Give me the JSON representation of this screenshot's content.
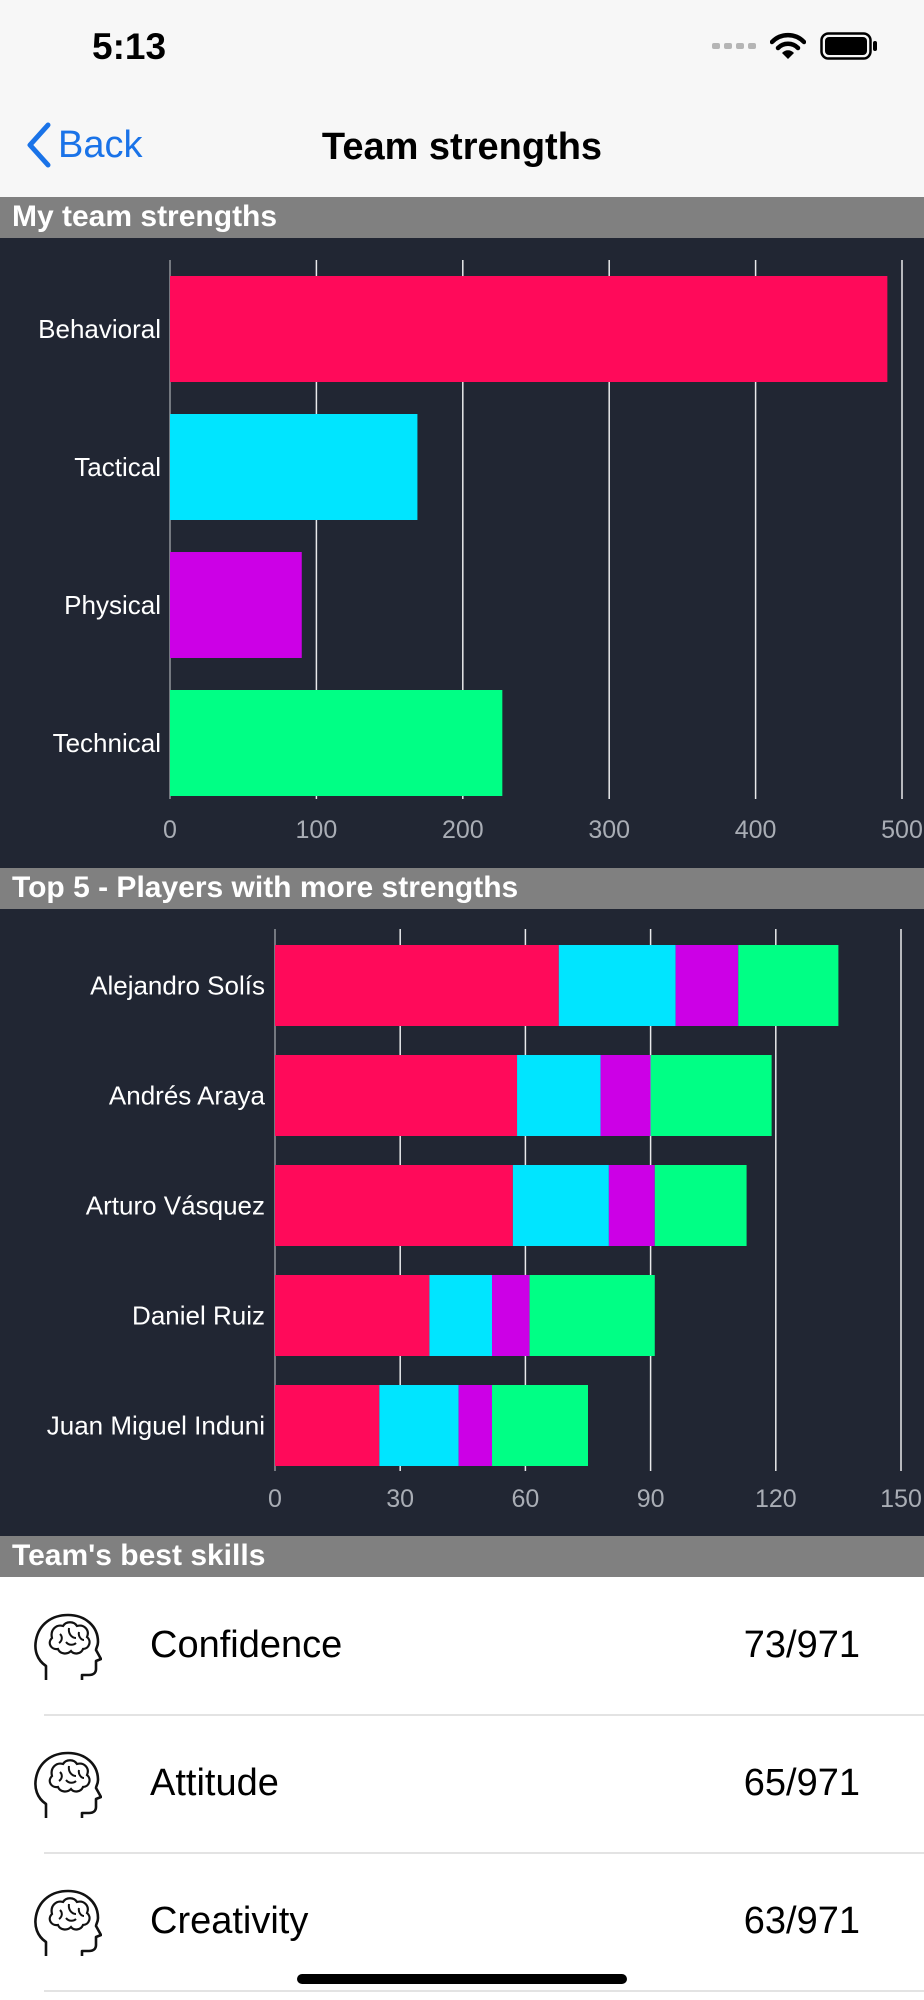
{
  "status_bar": {
    "time": "5:13"
  },
  "nav": {
    "back_label": "Back",
    "title": "Team strengths"
  },
  "sections": {
    "team_strengths": "My team strengths",
    "top_players": "Top 5 - Players with more strengths",
    "best_skills": "Team's best skills"
  },
  "colors": {
    "behavioral": "#ff0a5a",
    "tactical": "#00e5ff",
    "physical": "#cc00e6",
    "technical": "#00ff85",
    "panel_bg": "#212633",
    "header_bg": "#808080",
    "link": "#1a73e8"
  },
  "chart_data": [
    {
      "type": "bar",
      "orientation": "horizontal",
      "categories": [
        "Behavioral",
        "Tactical",
        "Physical",
        "Technical"
      ],
      "values": [
        490,
        169,
        90,
        227
      ],
      "xlim": [
        0,
        500
      ],
      "xticks": [
        0,
        100,
        200,
        300,
        400,
        500
      ],
      "grid": true,
      "legend": "none"
    },
    {
      "type": "bar",
      "orientation": "horizontal",
      "stacked": true,
      "categories": [
        "Alejandro Solís",
        "Andrés Araya",
        "Arturo Vásquez",
        "Daniel Ruiz",
        "Juan Miguel Induni"
      ],
      "series": [
        {
          "values": [
            68,
            58,
            57,
            37,
            25
          ]
        },
        {
          "values": [
            28,
            20,
            23,
            15,
            19
          ]
        },
        {
          "values": [
            15,
            12,
            11,
            9,
            8
          ]
        },
        {
          "values": [
            24,
            29,
            22,
            30,
            23
          ]
        }
      ],
      "xlim": [
        0,
        150
      ],
      "xticks": [
        0,
        30,
        60,
        90,
        120,
        150
      ],
      "grid": true,
      "legend": "none"
    }
  ],
  "skills": [
    {
      "name": "Confidence",
      "value": "73/971",
      "icon": "brain-head-icon"
    },
    {
      "name": "Attitude",
      "value": "65/971",
      "icon": "brain-head-icon"
    },
    {
      "name": "Creativity",
      "value": "63/971",
      "icon": "brain-head-icon"
    }
  ]
}
